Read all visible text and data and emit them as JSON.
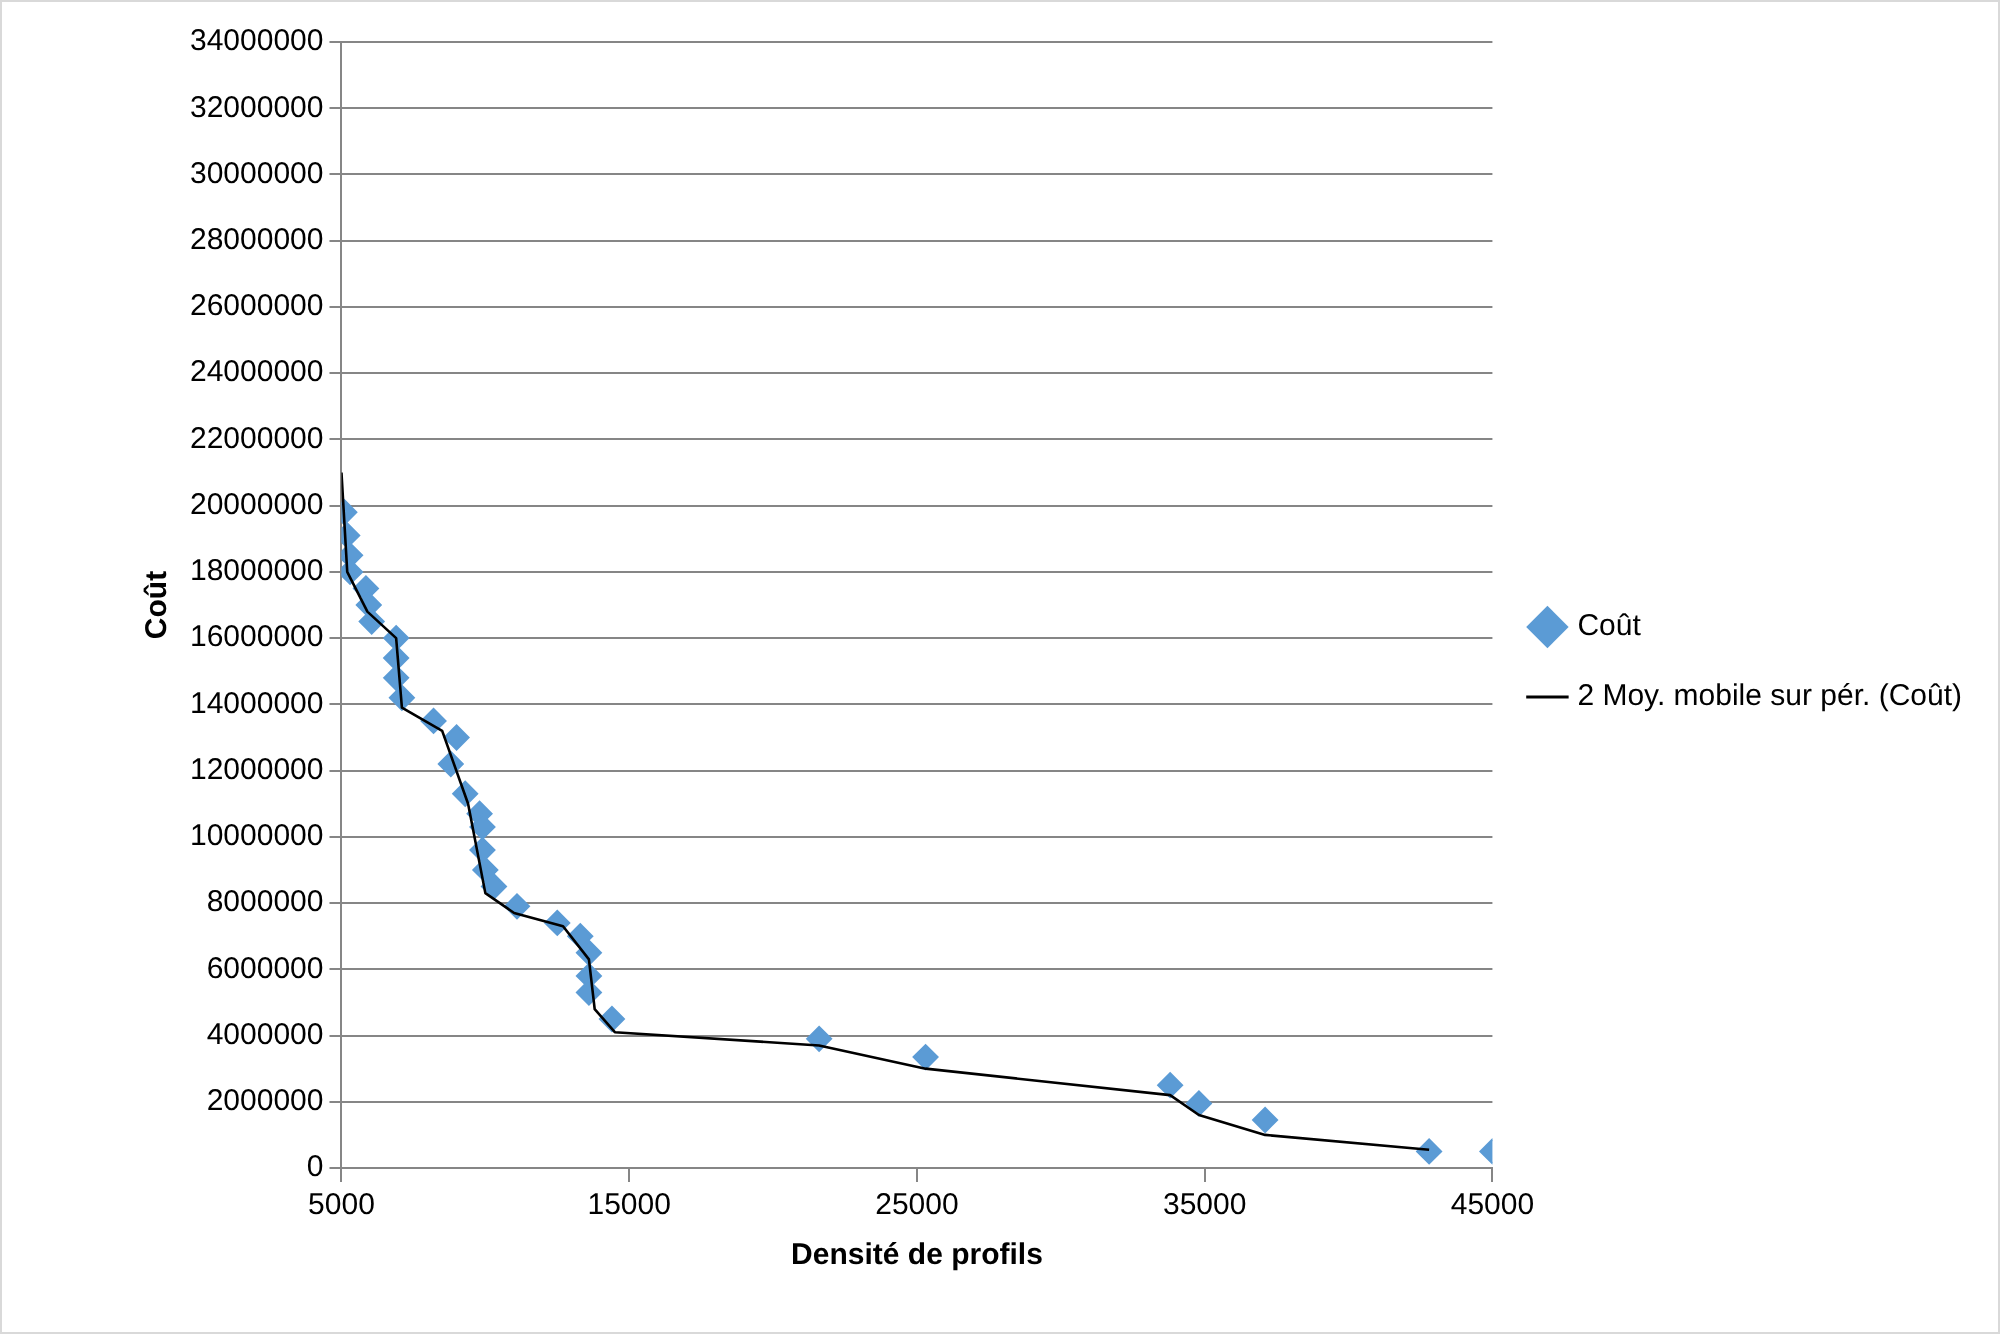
{
  "chart_data": {
    "type": "scatter",
    "xlabel": "Densité de profils",
    "ylabel": "Coût",
    "xlim": [
      5000,
      45000
    ],
    "xticks": [
      5000,
      15000,
      25000,
      35000,
      45000
    ],
    "ylim": [
      0,
      34000000
    ],
    "yticks": [
      0,
      2000000,
      4000000,
      6000000,
      8000000,
      10000000,
      12000000,
      14000000,
      16000000,
      18000000,
      20000000,
      22000000,
      24000000,
      26000000,
      28000000,
      30000000,
      32000000,
      34000000
    ],
    "grid": "y",
    "legend": "right",
    "marker": "diamond",
    "series": [
      {
        "name": "Coût",
        "color": "#5b9bd5",
        "x": [
          5100,
          5200,
          5300,
          5300,
          5850,
          5950,
          6050,
          6900,
          6900,
          6900,
          7100,
          8200,
          9000,
          8800,
          9300,
          9800,
          9900,
          9900,
          10000,
          10300,
          11100,
          12500,
          13300,
          13600,
          13600,
          13600,
          14400,
          21600,
          25300,
          33800,
          34800,
          37100,
          42800,
          45000
        ],
        "values": [
          19800000,
          19100000,
          18500000,
          18000000,
          17500000,
          17000000,
          16500000,
          16000000,
          15400000,
          14800000,
          14200000,
          13500000,
          13000000,
          12200000,
          11300000,
          10700000,
          10300000,
          9600000,
          9000000,
          8500000,
          7900000,
          7400000,
          7000000,
          6500000,
          5800000,
          5300000,
          4500000,
          3900000,
          3350000,
          2500000,
          1950000,
          1450000,
          500000,
          500000
        ]
      },
      {
        "name": "2 Moy. mobile sur pér. (Coût)",
        "type": "line",
        "color": "#000000",
        "marker": "none",
        "line_style": "solid",
        "x": [
          5000,
          5200,
          5900,
          6900,
          7100,
          8500,
          9400,
          10000,
          11000,
          12700,
          13600,
          13800,
          14500,
          21600,
          25300,
          33800,
          34800,
          37100,
          42800
        ],
        "values": [
          21000000,
          18000000,
          16800000,
          16000000,
          13900000,
          13200000,
          11000000,
          8300000,
          7700000,
          7300000,
          6300000,
          4800000,
          4100000,
          3700000,
          3000000,
          2200000,
          1600000,
          1000000,
          550000
        ]
      }
    ]
  }
}
